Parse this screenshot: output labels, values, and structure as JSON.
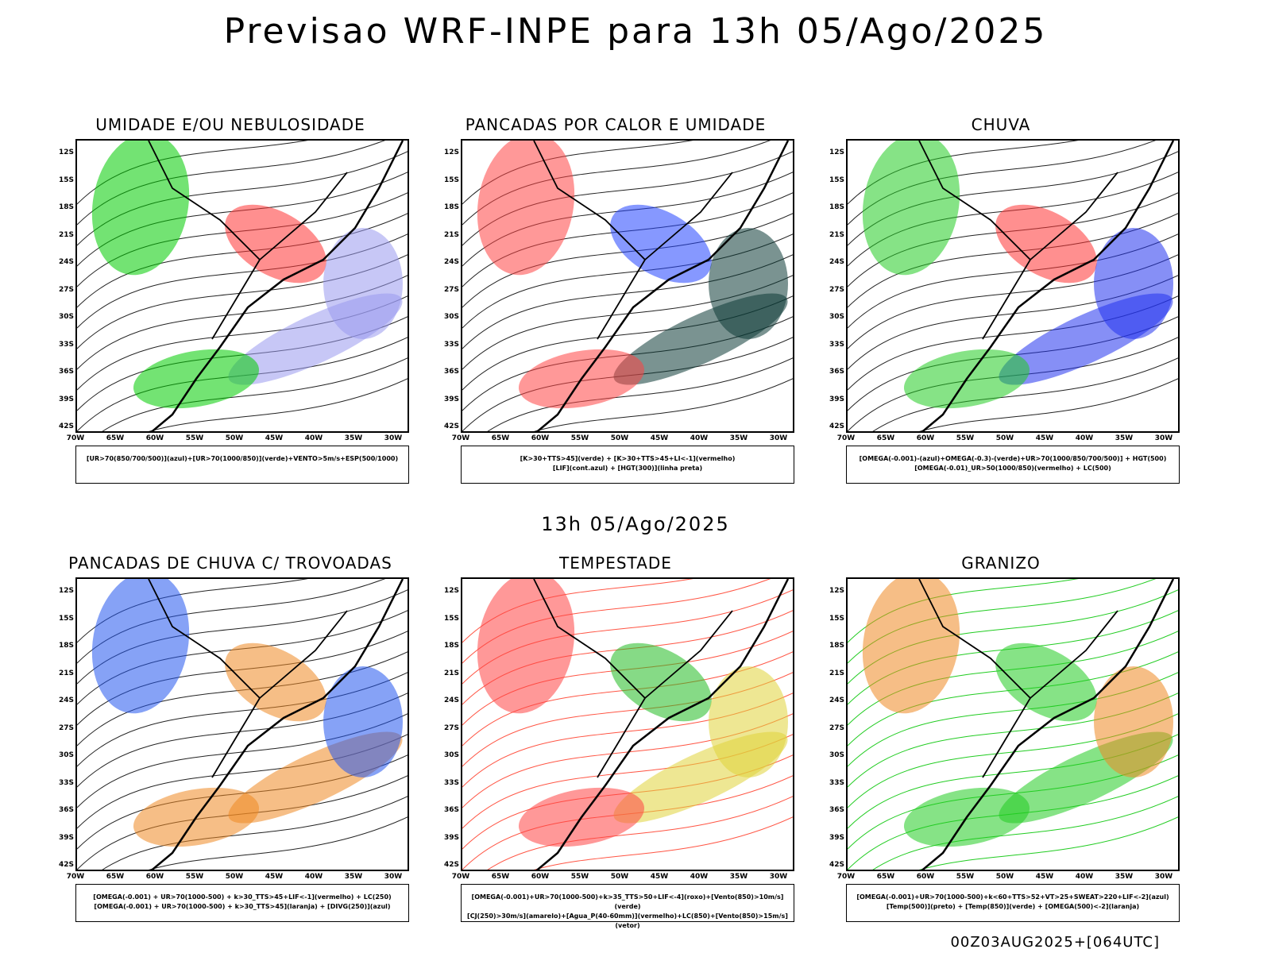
{
  "title": "Previsao WRF-INPE  para 13h 05/Ago/2025",
  "subtitle": "13h 05/Ago/2025",
  "footer": "00Z03AUG2025+[064UTC]",
  "lat_labels": [
    "12S",
    "15S",
    "18S",
    "21S",
    "24S",
    "27S",
    "30S",
    "33S",
    "36S",
    "39S",
    "42S"
  ],
  "lon_labels": [
    "70W",
    "65W",
    "60W",
    "55W",
    "50W",
    "45W",
    "40W",
    "35W",
    "30W"
  ],
  "panels": [
    {
      "title": "UMIDADE E/OU NEBULOSIDADE",
      "legend_lines": [
        "[UR>70(850/700/500)](azul)+[UR>70(1000/850)](verde)+VENTO>5m/s+ESP(500/1000)"
      ],
      "colors": [
        "#9999ee",
        "#00cc00",
        "#ff3333"
      ]
    },
    {
      "title": "PANCADAS POR CALOR E UMIDADE",
      "legend_lines": [
        "[K>30+TTS>45](verde) + [K>30+TTS>45+LI<-1](vermelho)",
        "[LIF](cont.azul) + [HGT(300)](linha preta)"
      ],
      "colors": [
        "#0d3b36",
        "#ff4444",
        "#2244ff"
      ]
    },
    {
      "title": "CHUVA",
      "legend_lines": [
        "[OMEGA(-0.001)-(azul)+OMEGA(-0.3)-(verde)+UR>70(1000/850/700/500)] + HGT(500)",
        "[OMEGA(-0.01)_UR>50(1000/850)(vermelho) + LC(500)"
      ],
      "colors": [
        "#2233ee",
        "#22cc22",
        "#ff3333"
      ]
    },
    {
      "title": "PANCADAS DE CHUVA C/ TROVOADAS",
      "legend_lines": [
        "[OMEGA(-0.001) + UR>70(1000-500) + k>30_TTS>45+LIF<-1](vermelho) + LC(250)",
        "[OMEGA(-0.001) + UR>70(1000-500) + k>30_TTS>45](laranja) + [DIVG(250)](azul)"
      ],
      "colors": [
        "#ee8822",
        "#2255ee"
      ]
    },
    {
      "title": "TEMPESTADE",
      "legend_lines": [
        "[OMEGA(-0.001)+UR>70(1000-500)+k>35_TTS>50+LIF<-4](roxo)+[Vento(850)>10m/s](verde)",
        "[CJ(250)>30m/s](amarelo)+[Agua_P(40-60mm)](vermelho)+LC(850)+[Vento(850)>15m/s](vetor)"
      ],
      "colors": [
        "#e0d43a",
        "#ff4444",
        "#22bb22"
      ]
    },
    {
      "title": "GRANIZO",
      "legend_lines": [
        "[OMEGA(-0.001)+UR>70(1000-500)+k<60+TTS>52+VT>25+SWEAT>220+LIF<-2](azul)",
        "[Temp(500)](preto) + [Temp(850)](verde) + [OMEGA(500)<-2](laranja)"
      ],
      "colors": [
        "#22cc22",
        "#ee8822"
      ]
    }
  ]
}
